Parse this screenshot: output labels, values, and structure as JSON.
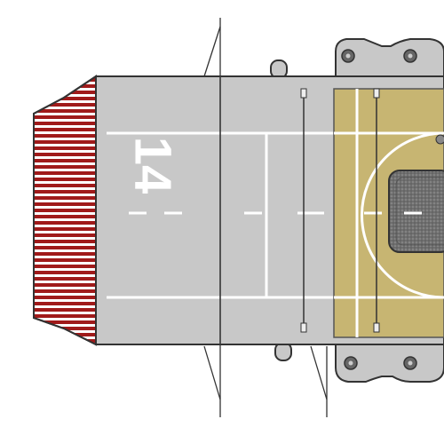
{
  "diagram": {
    "deck_number": "14",
    "colors": {
      "background": "#ffffff",
      "deck": "#c8c8c8",
      "deck_outline": "#333333",
      "bow_stripes_red": "#a01a1a",
      "bow_stripes_white": "#ffffff",
      "landing_pad": "#c7b572",
      "landing_pad_dark": "#9a8a4a",
      "platform": "#8c8c8c",
      "platform_inner": "#6a6a6a",
      "markings": "#ffffff",
      "catwalk": "#b8b8b8",
      "catwalk_detail": "#555555"
    },
    "icons": {
      "mount": "gun-mount-icon"
    }
  }
}
